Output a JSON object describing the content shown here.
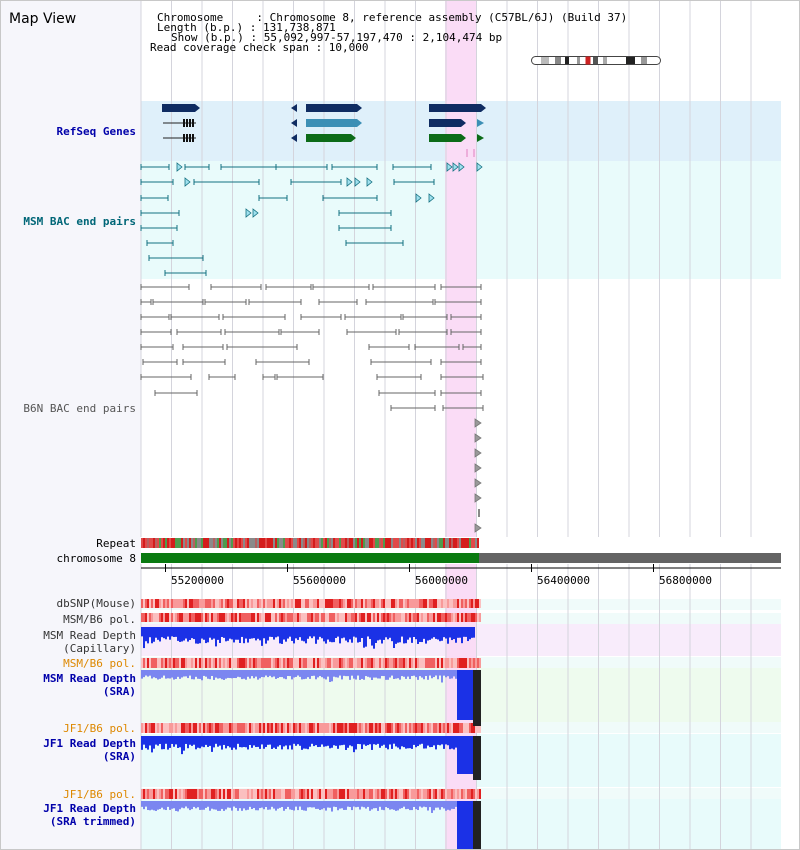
{
  "view": {
    "title": "Map View"
  },
  "header": {
    "chromosome": "Chromosome     : Chromosome 8, reference assembly (C57BL/6J) (Build 37)",
    "length": "Length (b.p.) : 131,738,871",
    "show": "Show (b.p.) : 55,092,997-57,197,470 : 2,104,474 bp",
    "read_coverage": "Read coverage check span : 10,000"
  },
  "tracks": {
    "refseq": "RefSeq Genes",
    "msm_bac": "MSM BAC end pairs",
    "b6n_bac": "B6N BAC end pairs",
    "repeat": "Repeat",
    "chromosome": "chromosome 8",
    "dbsnp": "dbSNP(Mouse)",
    "msm_b6_pol": "MSM/B6 pol.",
    "msm_depth_cap_1": "MSM Read Depth",
    "msm_depth_cap_2": "(Capillary)",
    "msm_b6_pol_2": "MSM/B6 pol.",
    "msm_depth_sra_1": "MSM Read Depth",
    "msm_depth_sra_2": "(SRA)",
    "jf1_b6_pol": "JF1/B6 pol.",
    "jf1_depth_sra_1": "JF1 Read Depth",
    "jf1_depth_sra_2": "(SRA)",
    "jf1_b6_pol_2": "JF1/B6 pol.",
    "jf1_depth_trim_1": "JF1 Read Depth",
    "jf1_depth_trim_2": "(SRA trimmed)"
  },
  "axis": {
    "ticks": [
      "55200000",
      "55600000",
      "56000000",
      "56400000",
      "56800000"
    ]
  },
  "colors": {
    "refseq_bg": "#dff0fa",
    "msm_bac_bg": "#e9fbfb",
    "highlight": "#fadcf6",
    "gene_navy": "#0f2c62",
    "gene_teal": "#3c8fb5",
    "gene_green": "#0c6b18",
    "bac_msm": "#137080",
    "bac_b6n": "#666666",
    "chromosome_green": "#0a7a10",
    "chromosome_gray": "#646464",
    "snp_red": "#e23a3a",
    "depth_blue": "#1b31e6",
    "depth_light_blue": "#7b86f0",
    "label_blue": "#0000aa",
    "label_teal": "#006677",
    "label_orange": "#dd8800"
  }
}
